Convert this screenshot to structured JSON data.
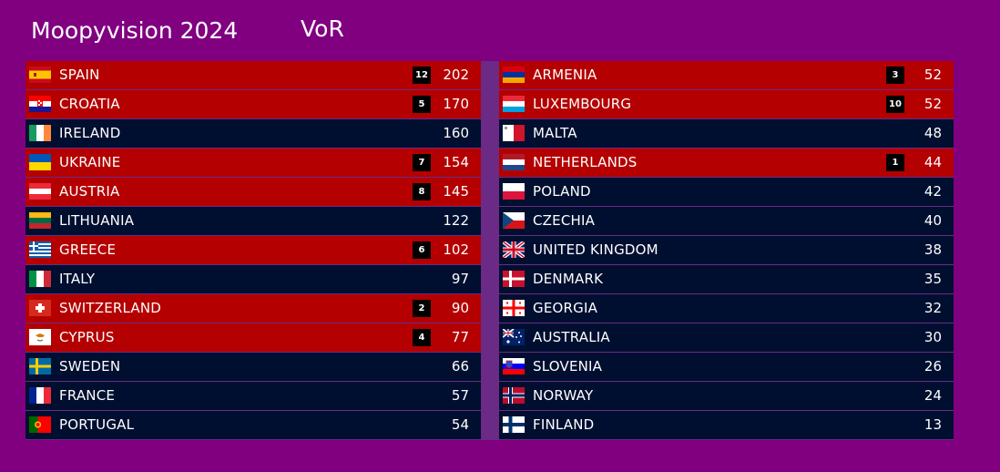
{
  "header": {
    "title": "Moopyvision 2024",
    "subtitle": "VoR"
  },
  "colors": {
    "background": "#800080",
    "voted_row": "#b40000",
    "plain_row": "#000f30",
    "points_box": "#000000"
  },
  "left": [
    {
      "country": "SPAIN",
      "flag": "spain-flag-icon",
      "points": "12",
      "score": "202",
      "voted": true
    },
    {
      "country": "CROATIA",
      "flag": "croatia-flag-icon",
      "points": "5",
      "score": "170",
      "voted": true
    },
    {
      "country": "IRELAND",
      "flag": "ireland-flag-icon",
      "points": "",
      "score": "160",
      "voted": false
    },
    {
      "country": "UKRAINE",
      "flag": "ukraine-flag-icon",
      "points": "7",
      "score": "154",
      "voted": true
    },
    {
      "country": "AUSTRIA",
      "flag": "austria-flag-icon",
      "points": "8",
      "score": "145",
      "voted": true
    },
    {
      "country": "LITHUANIA",
      "flag": "lithuania-flag-icon",
      "points": "",
      "score": "122",
      "voted": false
    },
    {
      "country": "GREECE",
      "flag": "greece-flag-icon",
      "points": "6",
      "score": "102",
      "voted": true
    },
    {
      "country": "ITALY",
      "flag": "italy-flag-icon",
      "points": "",
      "score": "97",
      "voted": false
    },
    {
      "country": "SWITZERLAND",
      "flag": "switzerland-flag-icon",
      "points": "2",
      "score": "90",
      "voted": true
    },
    {
      "country": "CYPRUS",
      "flag": "cyprus-flag-icon",
      "points": "4",
      "score": "77",
      "voted": true
    },
    {
      "country": "SWEDEN",
      "flag": "sweden-flag-icon",
      "points": "",
      "score": "66",
      "voted": false
    },
    {
      "country": "FRANCE",
      "flag": "france-flag-icon",
      "points": "",
      "score": "57",
      "voted": false
    },
    {
      "country": "PORTUGAL",
      "flag": "portugal-flag-icon",
      "points": "",
      "score": "54",
      "voted": false
    }
  ],
  "right": [
    {
      "country": "ARMENIA",
      "flag": "armenia-flag-icon",
      "points": "3",
      "score": "52",
      "voted": true
    },
    {
      "country": "LUXEMBOURG",
      "flag": "luxembourg-flag-icon",
      "points": "10",
      "score": "52",
      "voted": true
    },
    {
      "country": "MALTA",
      "flag": "malta-flag-icon",
      "points": "",
      "score": "48",
      "voted": false
    },
    {
      "country": "NETHERLANDS",
      "flag": "netherlands-flag-icon",
      "points": "1",
      "score": "44",
      "voted": true
    },
    {
      "country": "POLAND",
      "flag": "poland-flag-icon",
      "points": "",
      "score": "42",
      "voted": false
    },
    {
      "country": "CZECHIA",
      "flag": "czechia-flag-icon",
      "points": "",
      "score": "40",
      "voted": false
    },
    {
      "country": "UNITED KINGDOM",
      "flag": "united-kingdom-flag-icon",
      "points": "",
      "score": "38",
      "voted": false
    },
    {
      "country": "DENMARK",
      "flag": "denmark-flag-icon",
      "points": "",
      "score": "35",
      "voted": false
    },
    {
      "country": "GEORGIA",
      "flag": "georgia-flag-icon",
      "points": "",
      "score": "32",
      "voted": false
    },
    {
      "country": "AUSTRALIA",
      "flag": "australia-flag-icon",
      "points": "",
      "score": "30",
      "voted": false
    },
    {
      "country": "SLOVENIA",
      "flag": "slovenia-flag-icon",
      "points": "",
      "score": "26",
      "voted": false
    },
    {
      "country": "NORWAY",
      "flag": "norway-flag-icon",
      "points": "",
      "score": "24",
      "voted": false
    },
    {
      "country": "FINLAND",
      "flag": "finland-flag-icon",
      "points": "",
      "score": "13",
      "voted": false
    }
  ]
}
